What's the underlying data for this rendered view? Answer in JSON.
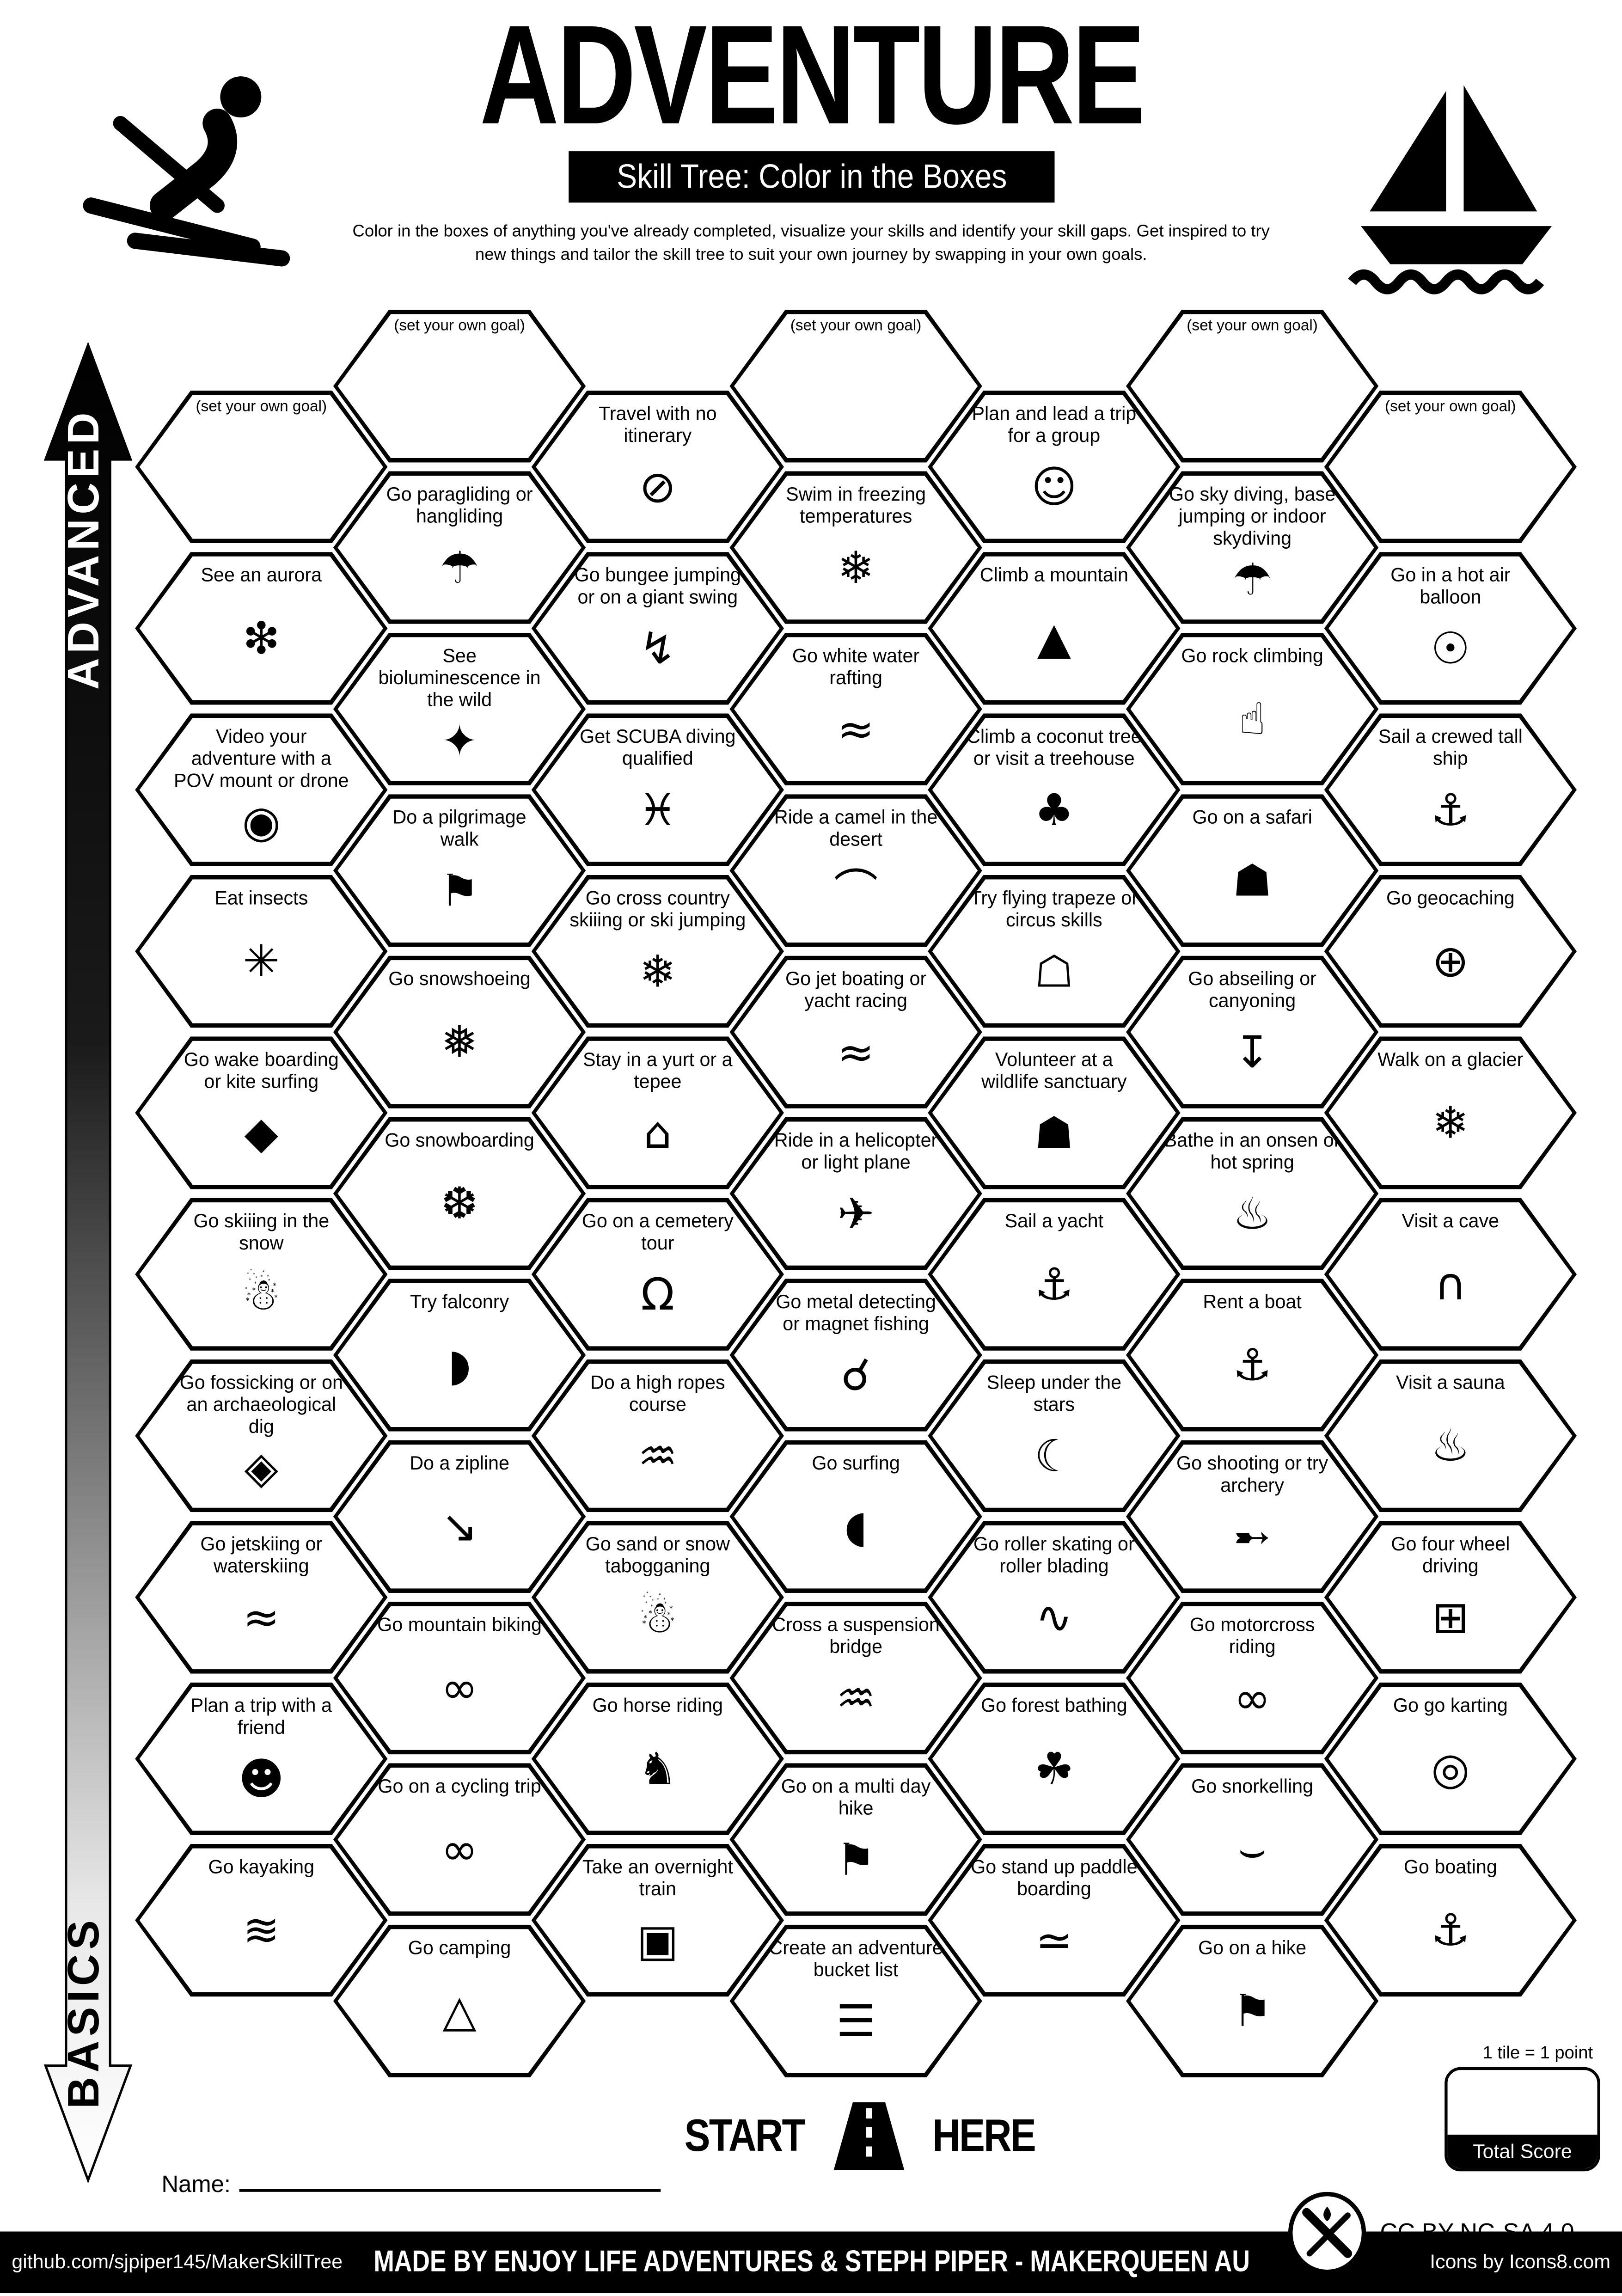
{
  "header": {
    "title": "ADVENTURE",
    "subtitle": "Skill Tree: Color in the Boxes",
    "description": "Color in the boxes of anything you've already completed, visualize your skills and identify your skill gaps.  Get inspired to try new things and tailor the skill tree to suit your own journey by swapping in your own goals."
  },
  "logos": {
    "top_left": "skier-icon",
    "top_right": "sailboat-icon"
  },
  "axis": {
    "top": "ADVANCED",
    "bottom": "BASICS"
  },
  "grid": {
    "columns": [
      {
        "tiles": [
          {
            "label": "(set your own goal)",
            "icon": null,
            "glyph": ""
          },
          {
            "label": "See an aurora",
            "icon": "aurora-icon",
            "glyph": "❇"
          },
          {
            "label": "Video your adventure with a POV mount or drone",
            "icon": "camera-icon",
            "glyph": "◉"
          },
          {
            "label": "Eat insects",
            "icon": "grasshopper-icon",
            "glyph": "✳"
          },
          {
            "label": "Go wake boarding or kite surfing",
            "icon": "kitesurfer-icon",
            "glyph": "◆"
          },
          {
            "label": "Go skiiing in the snow",
            "icon": "snow-skier-icon",
            "glyph": "☃"
          },
          {
            "label": "Go fossicking or on an archaeological dig",
            "icon": "gem-icon",
            "glyph": "◈"
          },
          {
            "label": "Go jetskiing or waterskiing",
            "icon": "jetski-icon",
            "glyph": "≈"
          },
          {
            "label": "Plan a trip with a friend",
            "icon": "friends-icon",
            "glyph": "☻"
          },
          {
            "label": "Go kayaking",
            "icon": "kayak-icon",
            "glyph": "≋"
          }
        ]
      },
      {
        "tiles": [
          {
            "label": "(set your own goal)",
            "icon": null,
            "glyph": ""
          },
          {
            "label": "Go paragliding or hangliding",
            "icon": "paraglider-icon",
            "glyph": "☂"
          },
          {
            "label": "See bioluminescence in the wild",
            "icon": "firefly-icon",
            "glyph": "✦"
          },
          {
            "label": "Do a pilgrimage walk",
            "icon": "pilgrim-hiker-icon",
            "glyph": "⚑"
          },
          {
            "label": "Go snowshoeing",
            "icon": "snowshoes-icon",
            "glyph": "❅"
          },
          {
            "label": "Go snowboarding",
            "icon": "snowboarder-icon",
            "glyph": "❆"
          },
          {
            "label": "Try falconry",
            "icon": "falcon-icon",
            "glyph": "◗"
          },
          {
            "label": "Do a zipline",
            "icon": "zipline-icon",
            "glyph": "↘"
          },
          {
            "label": "Go mountain biking",
            "icon": "mountain-bike-icon",
            "glyph": "∞"
          },
          {
            "label": "Go on a cycling trip",
            "icon": "bicycle-icon",
            "glyph": "∞"
          },
          {
            "label": "Go camping",
            "icon": "tent-icon",
            "glyph": "△"
          }
        ]
      },
      {
        "tiles": [
          {
            "label": "Travel with no itinerary",
            "icon": "no-itinerary-icon",
            "glyph": "⊘"
          },
          {
            "label": "Go bungee jumping or on a giant swing",
            "icon": "bungee-jumper-icon",
            "glyph": "↯"
          },
          {
            "label": "Get SCUBA diving qualified",
            "icon": "scuba-diver-icon",
            "glyph": "♓"
          },
          {
            "label": "Go cross country skiiing or ski jumping",
            "icon": "ski-jumper-icon",
            "glyph": "❄"
          },
          {
            "label": "Stay in a yurt or a tepee",
            "icon": "yurt-icon",
            "glyph": "⌂"
          },
          {
            "label": "Go on a cemetery tour",
            "icon": "tombstone-icon",
            "glyph": "Ω"
          },
          {
            "label": "Do a high ropes course",
            "icon": "ropes-course-icon",
            "glyph": "♒"
          },
          {
            "label": "Go sand or snow tabogganing",
            "icon": "toboggan-icon",
            "glyph": "☃"
          },
          {
            "label": "Go horse riding",
            "icon": "horse-icon",
            "glyph": "♞"
          },
          {
            "label": "Take an overnight train",
            "icon": "train-icon",
            "glyph": "▣"
          }
        ]
      },
      {
        "tiles": [
          {
            "label": "(set your own goal)",
            "icon": null,
            "glyph": ""
          },
          {
            "label": "Swim in freezing temperatures",
            "icon": "snowflakes-icon",
            "glyph": "❄"
          },
          {
            "label": "Go white water rafting",
            "icon": "raft-icon",
            "glyph": "≈"
          },
          {
            "label": "Ride a camel in the desert",
            "icon": "camel-icon",
            "glyph": "⌒"
          },
          {
            "label": "Go jet boating or yacht racing",
            "icon": "jet-boat-icon",
            "glyph": "≈"
          },
          {
            "label": "Ride in a helicopter or light plane",
            "icon": "helicopter-icon",
            "glyph": "✈"
          },
          {
            "label": "Go metal detecting or magnet fishing",
            "icon": "metal-detector-icon",
            "glyph": "☌"
          },
          {
            "label": "Go surfing",
            "icon": "surfboard-icon",
            "glyph": "◖"
          },
          {
            "label": "Cross a suspension bridge",
            "icon": "suspension-bridge-icon",
            "glyph": "♒"
          },
          {
            "label": "Go on a multi day hike",
            "icon": "hiker-icon",
            "glyph": "⚑"
          },
          {
            "label": "Create an adventure bucket list",
            "icon": "bucket-list-icon",
            "glyph": "☰"
          }
        ]
      },
      {
        "tiles": [
          {
            "label": "Plan and lead a trip for a group",
            "icon": "group-icon",
            "glyph": "☺"
          },
          {
            "label": "Climb a mountain",
            "icon": "mountain-icon",
            "glyph": "▲"
          },
          {
            "label": "Climb a coconut tree or visit a treehouse",
            "icon": "treehouse-icon",
            "glyph": "♣"
          },
          {
            "label": "Try flying trapeze or circus skills",
            "icon": "circus-tent-icon",
            "glyph": "☖"
          },
          {
            "label": "Volunteer at a wildlife sanctuary",
            "icon": "elephant-icon",
            "glyph": "☗"
          },
          {
            "label": "Sail a yacht",
            "icon": "yacht-icon",
            "glyph": "⚓"
          },
          {
            "label": "Sleep under the stars",
            "icon": "night-sky-icon",
            "glyph": "☾"
          },
          {
            "label": "Go roller skating or roller blading",
            "icon": "roller-skates-icon",
            "glyph": "∿"
          },
          {
            "label": "Go forest bathing",
            "icon": "forest-icon",
            "glyph": "☘"
          },
          {
            "label": "Go stand up paddle boarding",
            "icon": "paddleboard-icon",
            "glyph": "≃"
          }
        ]
      },
      {
        "tiles": [
          {
            "label": "(set your own goal)",
            "icon": null,
            "glyph": ""
          },
          {
            "label": "Go sky diving, base jumping or indoor skydiving",
            "icon": "parachute-icon",
            "glyph": "☂"
          },
          {
            "label": "Go rock climbing",
            "icon": "rock-climber-icon",
            "glyph": "☝"
          },
          {
            "label": "Go on a safari",
            "icon": "safari-elephant-icon",
            "glyph": "☗"
          },
          {
            "label": "Go abseiling or canyoning",
            "icon": "abseiler-icon",
            "glyph": "↧"
          },
          {
            "label": "Bathe in an onsen or hot spring",
            "icon": "onsen-icon",
            "glyph": "♨"
          },
          {
            "label": "Rent a boat",
            "icon": "boat-icon",
            "glyph": "⚓"
          },
          {
            "label": "Go shooting or try archery",
            "icon": "bow-and-arrow-icon",
            "glyph": "➸"
          },
          {
            "label": "Go motorcross riding",
            "icon": "motocross-bike-icon",
            "glyph": "∞"
          },
          {
            "label": "Go snorkelling",
            "icon": "snorkel-icon",
            "glyph": "⌣"
          },
          {
            "label": "Go on a hike",
            "icon": "hiker-icon",
            "glyph": "⚑"
          }
        ]
      },
      {
        "tiles": [
          {
            "label": "(set your own goal)",
            "icon": null,
            "glyph": ""
          },
          {
            "label": "Go in a hot air balloon",
            "icon": "hot-air-balloon-icon",
            "glyph": "☉"
          },
          {
            "label": "Sail a crewed tall ship",
            "icon": "tall-ship-icon",
            "glyph": "⚓"
          },
          {
            "label": "Go geocaching",
            "icon": "geocaching-globe-icon",
            "glyph": "⊕"
          },
          {
            "label": "Walk on a glacier",
            "icon": "glacier-snowflakes-icon",
            "glyph": "❄"
          },
          {
            "label": "Visit a cave",
            "icon": "cave-icon",
            "glyph": "∩"
          },
          {
            "label": "Visit a sauna",
            "icon": "sauna-icon",
            "glyph": "♨"
          },
          {
            "label": "Go four wheel driving",
            "icon": "four-wheel-drive-icon",
            "glyph": "⊞"
          },
          {
            "label": "Go go karting",
            "icon": "go-kart-icon",
            "glyph": "◎"
          },
          {
            "label": "Go boating",
            "icon": "sailboat-icon",
            "glyph": "⚓"
          }
        ]
      }
    ]
  },
  "start_here": {
    "start": "START",
    "here": "HERE",
    "icon": "road-icon"
  },
  "name_label": "Name:",
  "scoring": {
    "note": "1 tile = 1 point",
    "total_label": "Total Score"
  },
  "license": {
    "text": "CC BY-NC-SA 4.0",
    "icon": "maker-tools-icon"
  },
  "footer": {
    "left": "github.com/sjpiper145/MakerSkillTree",
    "center": "MADE BY ENJOY LIFE ADVENTURES & STEPH PIPER  -  MAKERQUEEN AU",
    "right": "Icons by Icons8.com"
  },
  "colors": {
    "ink": "#000000",
    "paper": "#ffffff"
  }
}
